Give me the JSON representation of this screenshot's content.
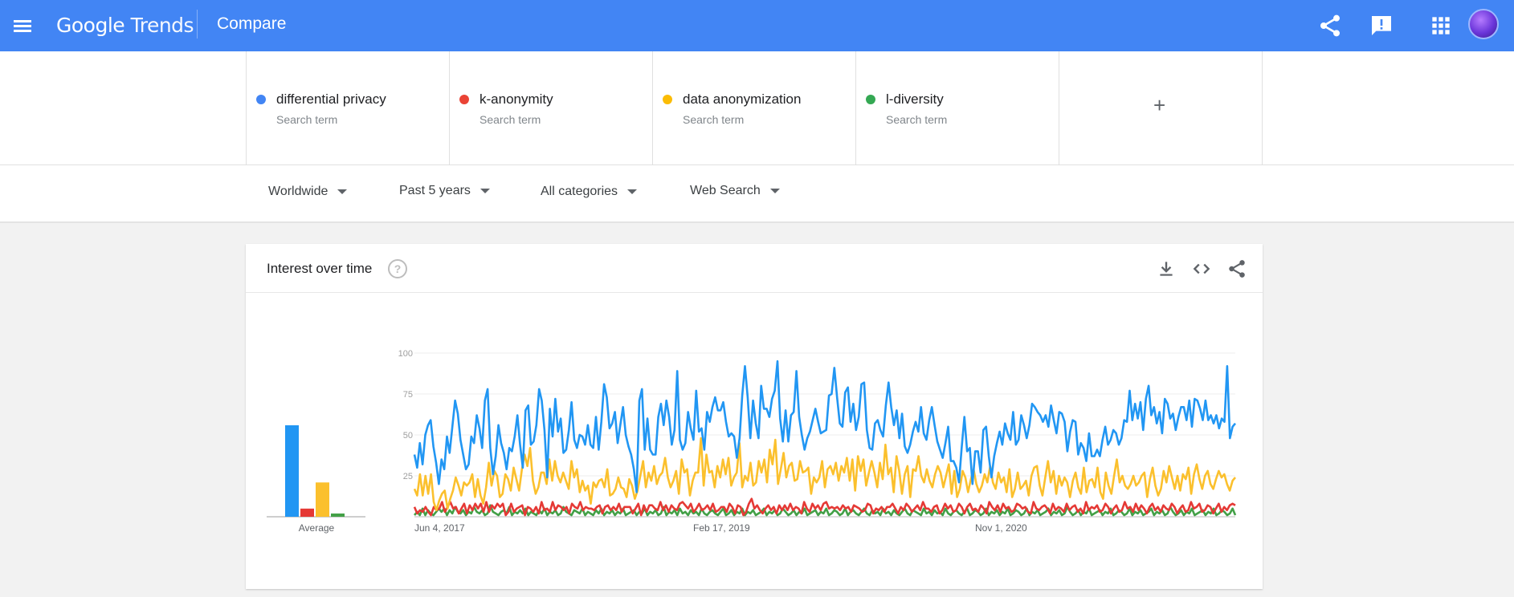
{
  "header": {
    "logo_google": "Google",
    "logo_trends": "Trends",
    "page_title": "Compare",
    "icons": [
      "menu-icon",
      "share-icon",
      "feedback-icon",
      "apps-icon",
      "account-avatar"
    ],
    "bg_color": "#4285f4"
  },
  "terms": [
    {
      "name": "differential privacy",
      "subtitle": "Search term",
      "color": "#4285f4"
    },
    {
      "name": "k-anonymity",
      "subtitle": "Search term",
      "color": "#ea4335"
    },
    {
      "name": "data anonymization",
      "subtitle": "Search term",
      "color": "#fbbc04"
    },
    {
      "name": "l-diversity",
      "subtitle": "Search term",
      "color": "#34a853"
    }
  ],
  "add_term": "+",
  "filters": {
    "region": "Worldwide",
    "time": "Past 5 years",
    "category": "All categories",
    "search_type": "Web Search"
  },
  "card": {
    "title": "Interest over time",
    "help": "?",
    "icons": [
      "download-icon",
      "embed-icon",
      "share-icon"
    ]
  },
  "chart_data": {
    "type": "line",
    "ylim": [
      0,
      100
    ],
    "yticks": [
      25,
      50,
      75,
      100
    ],
    "x_tick_labels": [
      "Jun 4, 2017",
      "Feb 17, 2019",
      "Nov 1, 2020"
    ],
    "average_label": "Average",
    "averages": [
      {
        "name": "differential privacy",
        "value": 56,
        "color": "#2196f3"
      },
      {
        "name": "k-anonymity",
        "value": 5,
        "color": "#e53935"
      },
      {
        "name": "data anonymization",
        "value": 21,
        "color": "#fbc02d"
      },
      {
        "name": "l-diversity",
        "value": 2,
        "color": "#43a047"
      }
    ],
    "series": [
      {
        "name": "differential privacy",
        "color": "#2196f3",
        "values": [
          38,
          30,
          45,
          32,
          50,
          56,
          59,
          43,
          33,
          20,
          35,
          29,
          49,
          39,
          55,
          71,
          63,
          47,
          38,
          29,
          32,
          49,
          45,
          62,
          54,
          42,
          71,
          78,
          42,
          26,
          37,
          56,
          45,
          39,
          29,
          42,
          40,
          49,
          62,
          44,
          30,
          65,
          68,
          44,
          46,
          56,
          78,
          71,
          53,
          24,
          66,
          49,
          72,
          52,
          60,
          39,
          41,
          53,
          70,
          47,
          42,
          50,
          49,
          44,
          56,
          44,
          42,
          61,
          41,
          58,
          81,
          73,
          54,
          57,
          64,
          45,
          56,
          67,
          50,
          43,
          38,
          29,
          15,
          71,
          78,
          41,
          60,
          41,
          38,
          38,
          61,
          69,
          56,
          71,
          61,
          44,
          53,
          89,
          47,
          41,
          45,
          64,
          54,
          47,
          77,
          52,
          54,
          41,
          64,
          58,
          67,
          73,
          65,
          65,
          70,
          58,
          49,
          51,
          49,
          36,
          48,
          74,
          92,
          73,
          48,
          71,
          57,
          48,
          80,
          66,
          66,
          61,
          72,
          77,
          95,
          60,
          46,
          65,
          46,
          62,
          64,
          89,
          61,
          50,
          41,
          48,
          52,
          59,
          66,
          58,
          51,
          52,
          53,
          74,
          75,
          91,
          73,
          57,
          55,
          76,
          79,
          58,
          69,
          53,
          61,
          81,
          82,
          53,
          42,
          41,
          57,
          59,
          53,
          49,
          68,
          82,
          67,
          56,
          65,
          48,
          63,
          43,
          39,
          44,
          52,
          58,
          52,
          67,
          51,
          47,
          59,
          67,
          56,
          46,
          41,
          36,
          45,
          55,
          34,
          34,
          30,
          21,
          42,
          61,
          40,
          42,
          20,
          40,
          40,
          27,
          53,
          55,
          37,
          24,
          37,
          45,
          52,
          44,
          57,
          51,
          47,
          64,
          44,
          47,
          62,
          56,
          48,
          56,
          69,
          67,
          64,
          62,
          58,
          62,
          55,
          68,
          59,
          51,
          64,
          63,
          58,
          40,
          52,
          59,
          58,
          38,
          45,
          42,
          34,
          51,
          37,
          37,
          41,
          37,
          47,
          55,
          44,
          47,
          53,
          51,
          44,
          48,
          59,
          58,
          77,
          59,
          69,
          60,
          70,
          53,
          72,
          80,
          62,
          67,
          57,
          64,
          51,
          72,
          69,
          60,
          63,
          53,
          61,
          67,
          67,
          59,
          71,
          55,
          72,
          71,
          66,
          59,
          71,
          59,
          62,
          57,
          62,
          54,
          60,
          58,
          92,
          48,
          55,
          57
        ]
      },
      {
        "name": "k-anonymity",
        "color": "#e53935",
        "values": [
          6,
          2,
          4,
          3,
          6,
          3,
          1,
          6,
          4,
          5,
          9,
          3,
          6,
          9,
          5,
          6,
          2,
          5,
          8,
          2,
          7,
          4,
          8,
          5,
          8,
          3,
          9,
          3,
          7,
          5,
          8,
          6,
          8,
          1,
          3,
          8,
          3,
          5,
          6,
          7,
          1,
          6,
          5,
          3,
          6,
          2,
          9,
          4,
          5,
          3,
          9,
          4,
          7,
          6,
          4,
          6,
          2,
          8,
          6,
          5,
          9,
          4,
          6,
          5,
          5,
          4,
          6,
          7,
          2,
          6,
          7,
          4,
          6,
          4,
          8,
          3,
          6,
          6,
          6,
          2,
          5,
          8,
          1,
          7,
          3,
          7,
          7,
          5,
          4,
          9,
          4,
          7,
          3,
          7,
          5,
          4,
          8,
          9,
          7,
          5,
          8,
          3,
          5,
          8,
          4,
          5,
          7,
          4,
          8,
          3,
          4,
          6,
          6,
          3,
          8,
          6,
          2,
          7,
          6,
          1,
          3,
          8,
          11,
          5,
          7,
          4,
          2,
          5,
          7,
          4,
          6,
          2,
          7,
          4,
          7,
          4,
          8,
          4,
          6,
          5,
          2,
          9,
          5,
          3,
          8,
          5,
          7,
          4,
          8,
          9,
          5,
          6,
          5,
          6,
          4,
          7,
          5,
          6,
          3,
          7,
          6,
          5,
          3,
          4,
          8,
          7,
          2,
          5,
          4,
          6,
          3,
          6,
          6,
          8,
          5,
          2,
          6,
          4,
          8,
          6,
          3,
          5,
          7,
          4,
          9,
          5,
          5,
          3,
          6,
          7,
          2,
          4,
          8,
          5,
          7,
          3,
          4,
          8,
          6,
          2,
          6,
          8,
          4,
          5,
          3,
          7,
          5,
          2,
          9,
          6,
          4,
          7,
          3,
          8,
          5,
          6,
          3,
          4,
          8,
          7,
          5,
          6,
          3,
          2,
          9,
          5,
          4,
          6,
          7,
          5,
          2,
          8,
          4,
          6,
          5,
          3,
          8,
          4,
          6,
          7,
          3,
          5,
          2,
          9,
          4,
          6,
          5,
          7,
          3,
          4,
          8,
          6,
          2,
          5,
          7,
          3,
          4,
          9,
          5,
          6,
          3,
          8,
          4,
          7,
          5,
          2,
          6,
          8,
          4,
          6,
          3,
          7,
          5,
          4,
          8,
          6,
          2,
          5,
          7,
          3,
          4,
          9,
          5,
          6,
          8,
          3,
          4,
          7,
          6,
          2,
          5,
          8,
          3,
          6,
          4,
          7,
          8,
          7
        ]
      },
      {
        "name": "data anonymization",
        "color": "#fbc02d",
        "values": [
          17,
          13,
          26,
          13,
          25,
          14,
          26,
          9,
          4,
          10,
          14,
          16,
          5,
          11,
          16,
          24,
          19,
          13,
          21,
          19,
          21,
          26,
          12,
          23,
          13,
          8,
          18,
          33,
          19,
          28,
          25,
          12,
          14,
          26,
          23,
          16,
          30,
          23,
          16,
          29,
          38,
          31,
          42,
          22,
          14,
          18,
          27,
          27,
          20,
          35,
          22,
          34,
          25,
          21,
          27,
          22,
          17,
          34,
          24,
          29,
          15,
          22,
          16,
          19,
          8,
          21,
          18,
          22,
          23,
          18,
          29,
          13,
          14,
          17,
          24,
          18,
          17,
          12,
          23,
          19,
          11,
          16,
          25,
          34,
          18,
          27,
          22,
          31,
          20,
          25,
          27,
          36,
          24,
          18,
          22,
          28,
          14,
          35,
          27,
          29,
          13,
          22,
          27,
          27,
          48,
          19,
          38,
          27,
          28,
          18,
          31,
          24,
          35,
          26,
          36,
          19,
          24,
          27,
          45,
          18,
          25,
          22,
          33,
          19,
          21,
          34,
          27,
          35,
          21,
          41,
          32,
          47,
          20,
          29,
          39,
          24,
          31,
          33,
          22,
          23,
          34,
          27,
          28,
          30,
          14,
          24,
          21,
          24,
          34,
          18,
          29,
          31,
          26,
          33,
          22,
          31,
          27,
          36,
          22,
          35,
          16,
          37,
          28,
          35,
          19,
          27,
          34,
          27,
          18,
          33,
          23,
          44,
          26,
          30,
          15,
          37,
          28,
          14,
          26,
          31,
          12,
          29,
          28,
          37,
          25,
          21,
          29,
          22,
          18,
          26,
          31,
          27,
          18,
          25,
          32,
          14,
          28,
          12,
          17,
          28,
          24,
          15,
          23,
          29,
          20,
          15,
          19,
          26,
          21,
          31,
          21,
          17,
          27,
          21,
          24,
          15,
          29,
          12,
          17,
          27,
          17,
          19,
          22,
          13,
          25,
          30,
          31,
          19,
          13,
          24,
          34,
          21,
          28,
          14,
          25,
          19,
          24,
          21,
          12,
          22,
          27,
          18,
          14,
          30,
          15,
          22,
          23,
          18,
          30,
          15,
          11,
          27,
          19,
          14,
          25,
          35,
          21,
          25,
          19,
          17,
          20,
          25,
          19,
          21,
          25,
          27,
          12,
          23,
          30,
          19,
          13,
          17,
          28,
          21,
          31,
          24,
          17,
          25,
          16,
          26,
          23,
          30,
          14,
          26,
          32,
          23,
          17,
          25,
          28,
          20,
          17,
          23,
          28,
          24,
          26,
          20,
          16,
          22,
          24
        ]
      },
      {
        "name": "l-diversity",
        "color": "#43a047",
        "values": [
          1,
          3,
          1,
          5,
          1,
          4,
          2,
          1,
          3,
          5,
          3,
          5,
          1,
          4,
          2,
          6,
          3,
          2,
          4,
          1,
          3,
          2,
          6,
          3,
          2,
          4,
          1,
          2,
          7,
          3,
          2,
          1,
          3,
          4,
          2,
          6,
          1,
          3,
          2,
          4,
          2,
          5,
          1,
          3,
          2,
          1,
          4,
          2,
          5,
          1,
          3,
          2,
          4,
          1,
          2,
          6,
          3,
          2,
          1,
          4,
          3,
          2,
          5,
          1,
          3,
          2,
          1,
          4,
          2,
          5,
          1,
          3,
          2,
          4,
          1,
          3,
          2,
          5,
          1,
          2,
          3,
          4,
          1,
          3,
          2,
          5,
          1,
          3,
          2,
          4,
          1,
          2,
          6,
          1,
          3,
          2,
          4,
          1,
          5,
          2,
          3,
          1,
          4,
          2,
          3,
          1,
          5,
          2,
          1,
          3,
          4,
          2,
          1,
          3,
          5,
          1,
          2,
          4,
          1,
          3,
          2,
          5,
          1,
          3,
          2,
          4,
          1,
          2,
          3,
          5,
          1,
          3,
          2,
          4,
          1,
          2,
          5,
          3,
          1,
          2,
          4,
          1,
          3,
          2,
          5,
          1,
          2,
          3,
          4,
          1,
          3,
          2,
          5,
          1,
          2,
          4,
          3,
          1,
          2,
          5,
          1,
          3,
          4,
          2,
          1,
          3,
          5,
          2,
          1,
          4,
          2,
          3,
          1,
          5,
          2,
          3,
          1,
          4,
          2,
          1,
          3,
          5,
          2,
          1,
          4,
          3,
          2,
          1,
          5,
          2,
          3,
          1,
          4,
          2,
          3,
          1,
          5,
          2,
          1,
          3,
          4,
          2,
          1,
          3,
          5,
          1,
          2,
          4,
          3,
          1,
          2,
          5,
          1,
          3,
          2,
          4,
          1,
          3,
          2,
          5,
          1,
          2,
          4,
          3,
          1,
          2,
          5,
          1,
          3,
          2,
          4,
          1,
          2,
          3,
          5,
          1,
          3,
          2,
          4,
          1,
          2,
          6,
          3,
          1,
          2,
          4,
          1,
          3,
          2,
          5,
          1,
          2,
          3,
          4,
          1,
          3,
          2,
          5,
          1,
          2,
          4,
          3,
          1,
          2,
          5,
          1,
          3,
          2,
          4,
          1,
          2,
          3,
          5,
          1,
          3,
          2,
          4,
          1,
          2,
          6,
          3,
          1,
          2,
          4,
          1,
          3,
          2,
          5,
          1,
          2,
          3,
          4,
          1,
          3,
          2,
          5,
          1,
          2,
          4,
          3,
          1,
          2,
          5,
          1
        ]
      }
    ]
  }
}
